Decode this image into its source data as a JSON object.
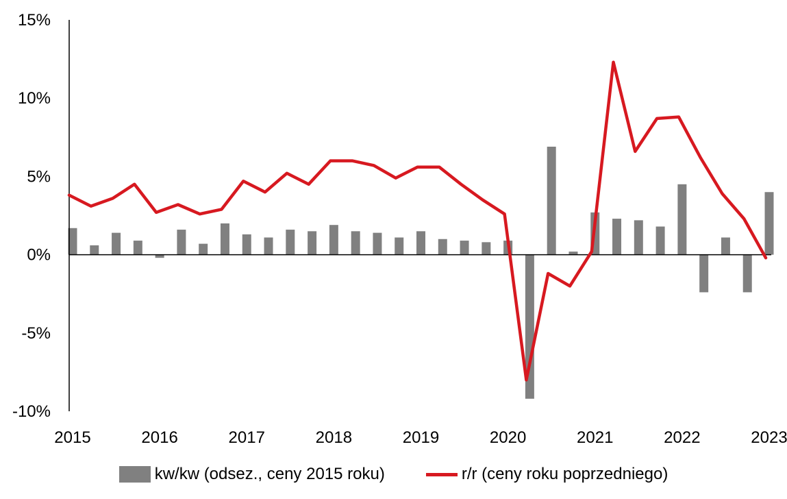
{
  "chart_data": {
    "type": "bar",
    "title": "",
    "xlabel": "",
    "ylabel": "",
    "ylim": [
      -10,
      15
    ],
    "yticks": [
      {
        "value": 15,
        "label": "15%"
      },
      {
        "value": 10,
        "label": "10%"
      },
      {
        "value": 5,
        "label": "5%"
      },
      {
        "value": 0,
        "label": "0%"
      },
      {
        "value": -5,
        "label": "-5%"
      },
      {
        "value": -10,
        "label": "-10%"
      }
    ],
    "xtick_labels": [
      "2015",
      "2016",
      "2017",
      "2018",
      "2019",
      "2020",
      "2021",
      "2022",
      "2023"
    ],
    "quarters": [
      "2015 Q1",
      "2015 Q2",
      "2015 Q3",
      "2015 Q4",
      "2016 Q1",
      "2016 Q2",
      "2016 Q3",
      "2016 Q4",
      "2017 Q1",
      "2017 Q2",
      "2017 Q3",
      "2017 Q4",
      "2018 Q1",
      "2018 Q2",
      "2018 Q3",
      "2018 Q4",
      "2019 Q1",
      "2019 Q2",
      "2019 Q3",
      "2019 Q4",
      "2020 Q1",
      "2020 Q2",
      "2020 Q3",
      "2020 Q4",
      "2021 Q1",
      "2021 Q2",
      "2021 Q3",
      "2021 Q4",
      "2022 Q1",
      "2022 Q2",
      "2022 Q3",
      "2022 Q4",
      "2023 Q1"
    ],
    "series": [
      {
        "name": "kw/kw (odsez., ceny 2015 roku)",
        "type": "bar",
        "color": "#808080",
        "values": [
          1.7,
          0.6,
          1.4,
          0.9,
          -0.2,
          1.6,
          0.7,
          2.0,
          1.3,
          1.1,
          1.6,
          1.5,
          1.9,
          1.5,
          1.4,
          1.1,
          1.5,
          1.0,
          0.9,
          0.8,
          0.9,
          -9.2,
          6.9,
          0.2,
          2.7,
          2.3,
          2.2,
          1.8,
          4.5,
          -2.4,
          1.1,
          -2.4,
          4.0
        ]
      },
      {
        "name": "r/r (ceny roku poprzedniego)",
        "type": "line",
        "color": "#d71920",
        "values": [
          3.8,
          3.1,
          3.6,
          4.5,
          2.7,
          3.2,
          2.6,
          2.9,
          4.7,
          4.0,
          5.2,
          4.5,
          6.0,
          6.0,
          5.7,
          4.9,
          5.6,
          5.6,
          4.5,
          3.5,
          2.6,
          -8.0,
          -1.2,
          -2.0,
          0.2,
          12.3,
          6.6,
          8.7,
          8.8,
          6.2,
          3.9,
          2.3,
          -0.2
        ]
      }
    ],
    "legend_position": "bottom",
    "grid": false
  }
}
